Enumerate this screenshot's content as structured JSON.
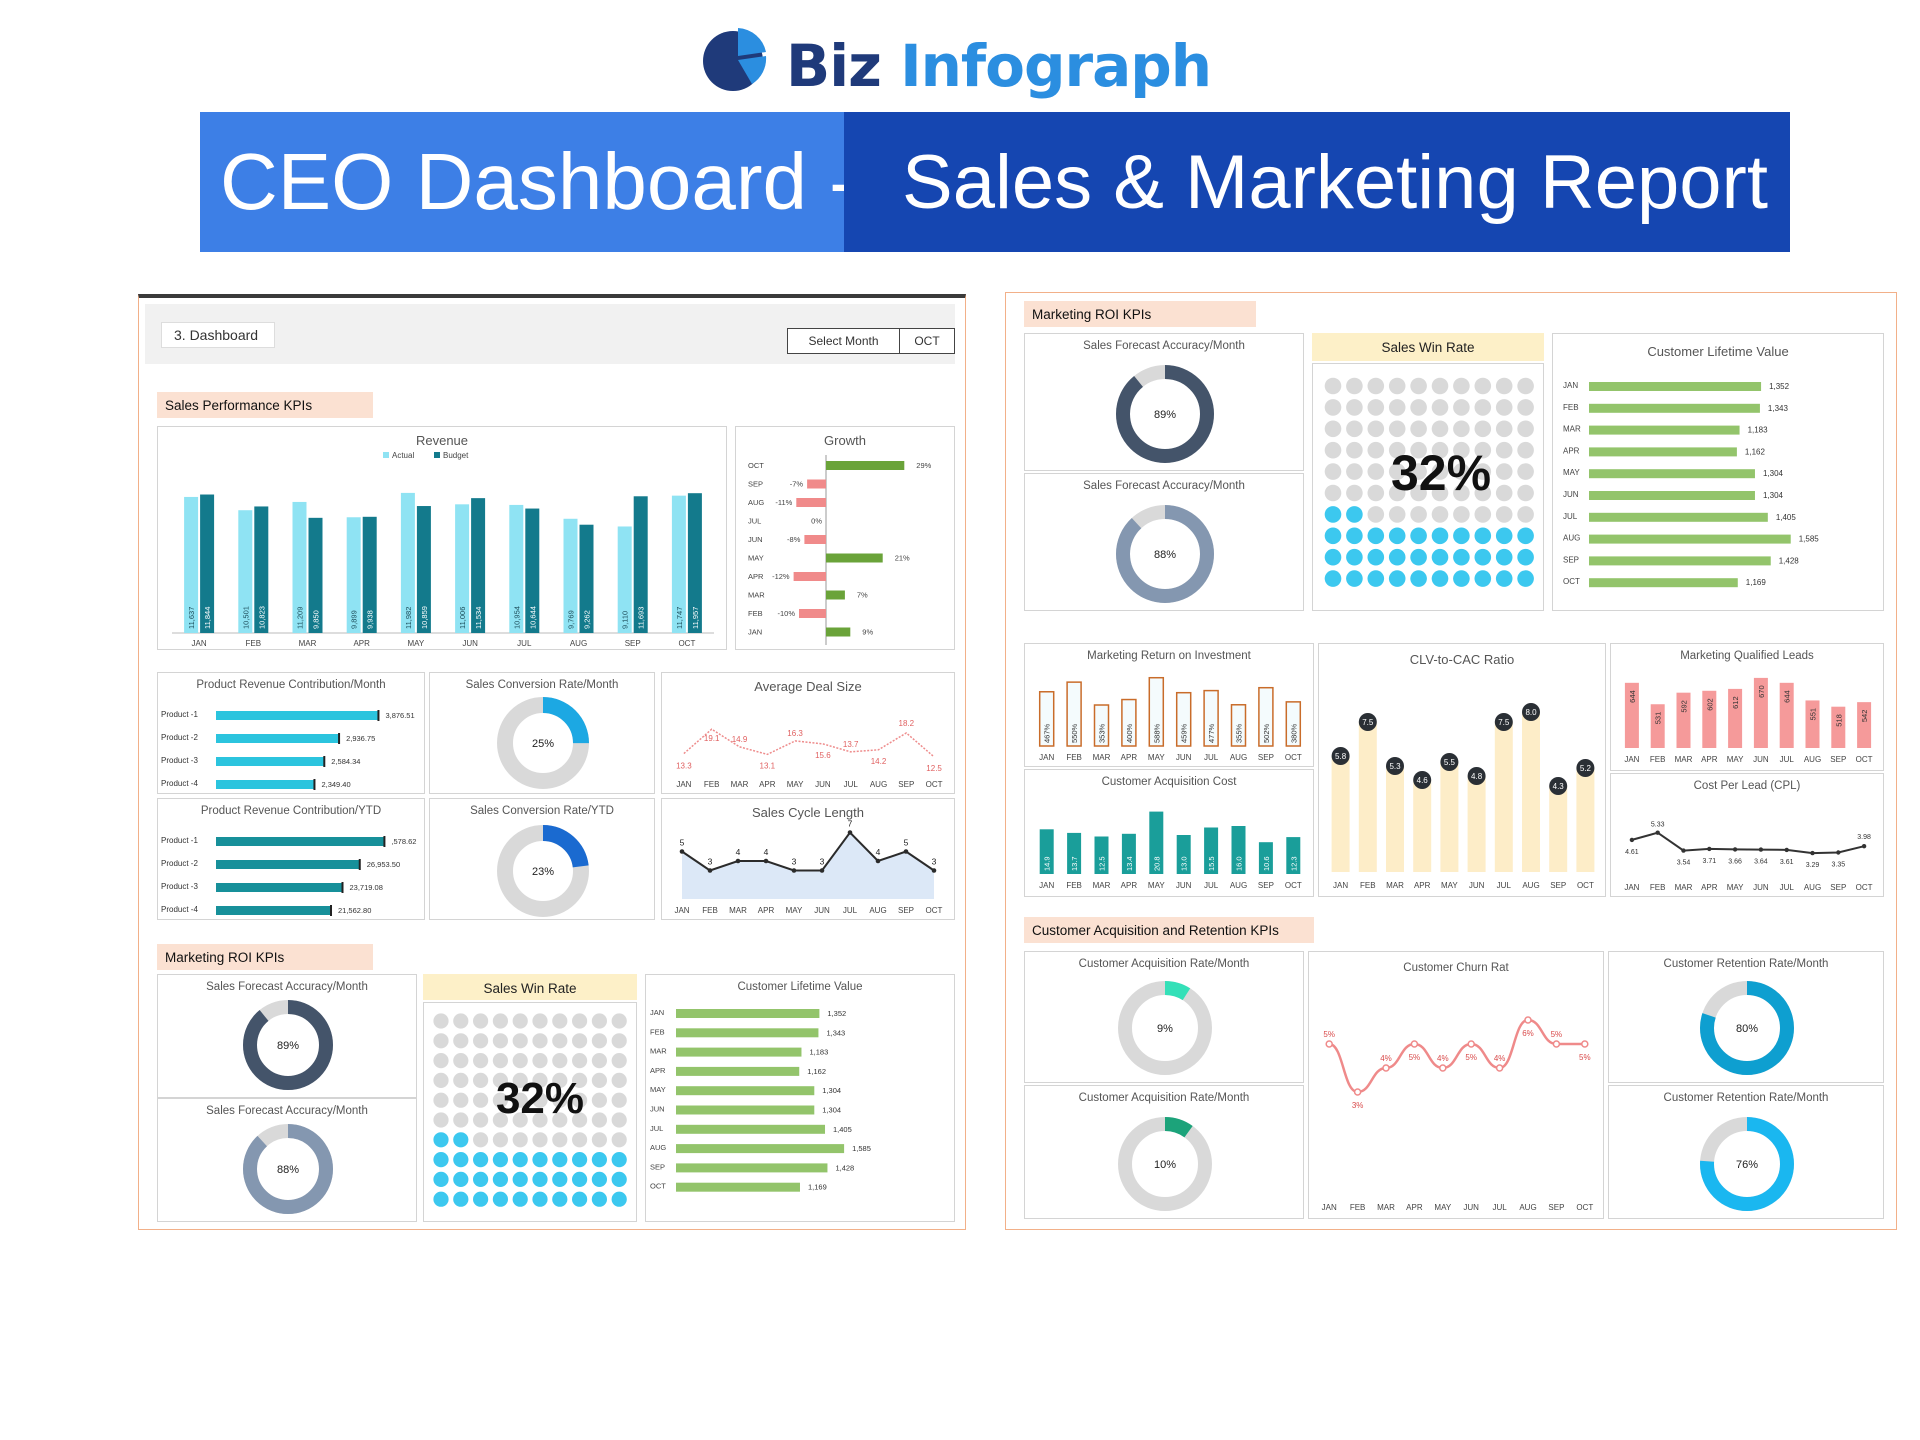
{
  "brand": {
    "name_a": "Biz",
    "name_b": "Infograph"
  },
  "banner": {
    "left": "CEO Dashboard -",
    "right": "Sales & Marketing Report"
  },
  "dash": {
    "tab": "3. Dashboard",
    "select_label": "Select Month",
    "select_value": "OCT"
  },
  "sections": {
    "sales": "Sales Performance KPIs",
    "mroi": "Marketing ROI KPIs",
    "car": "Customer Acquisition and Retention KPIs"
  },
  "months": [
    "JAN",
    "FEB",
    "MAR",
    "APR",
    "MAY",
    "JUN",
    "JUL",
    "AUG",
    "SEP",
    "OCT"
  ],
  "colors": {
    "actual": "#8fe3f3",
    "budget": "#137a8c",
    "win_fill": "#3cc8ef",
    "win_empty": "#d9d9d9",
    "navy": "#44546a",
    "slate": "#8497b0",
    "growth_pos": "#6aa339",
    "growth_neg": "#f08a8a",
    "clv": "#93c46b",
    "teal": "#1a9e9a",
    "cream": "#fdedc8",
    "pink": "#f59a9a",
    "orange": "#c96c2a"
  },
  "revenue": {
    "title": "Revenue",
    "legend": [
      "Actual",
      "Budget"
    ],
    "actual": [
      11637,
      10501,
      11209,
      9899,
      11982,
      11006,
      10954,
      9769,
      9110,
      11747
    ],
    "budget": [
      11844,
      10823,
      9850,
      9938,
      10859,
      11534,
      10644,
      9262,
      11693,
      11957
    ],
    "actual_labels": [
      "11,637",
      "10,501",
      "11,209",
      "9,899",
      "11,982",
      "11,006",
      "10,954",
      "9,769",
      "9,110",
      "11,747"
    ],
    "budget_labels": [
      "11,844",
      "10,823",
      "9,850",
      "9,938",
      "10,859",
      "11,534",
      "10,644",
      "9,262",
      "11,693",
      "11,957"
    ]
  },
  "growth": {
    "title": "Growth",
    "months": [
      "OCT",
      "SEP",
      "AUG",
      "JUL",
      "JUN",
      "MAY",
      "APR",
      "MAR",
      "FEB",
      "JAN"
    ],
    "values": [
      29,
      -7,
      -11,
      0,
      -8,
      21,
      -12,
      7,
      -10,
      9
    ],
    "labels": [
      "29%",
      "-7%",
      "-11%",
      "0%",
      "-8%",
      "21%",
      "-12%",
      "7%",
      "-10%",
      "9%"
    ]
  },
  "prc_month": {
    "title": "Product Revenue Contribution/Month",
    "products": [
      "Product -1",
      "Product -2",
      "Product -3",
      "Product -4"
    ],
    "values": [
      3876.51,
      2936.75,
      2584.34,
      2349.4
    ],
    "labels": [
      "3,876.51",
      "2,936.75",
      "2,584.34",
      "2,349.40"
    ]
  },
  "prc_ytd": {
    "title": "Product Revenue Contribution/YTD",
    "products": [
      "Product -1",
      "Product -2",
      "Product -3",
      "Product -4"
    ],
    "values": [
      31578.62,
      26953.5,
      23719.08,
      21562.8
    ],
    "labels": [
      ",578.62",
      "26,953.50",
      "23,719.08",
      "21,562.80"
    ]
  },
  "scr_month": {
    "title": "Sales Conversion Rate/Month",
    "value": 25,
    "label": "25%"
  },
  "scr_ytd": {
    "title": "Sales Conversion Rate/YTD",
    "value": 23,
    "label": "23%"
  },
  "deal": {
    "title": "Average Deal Size",
    "values": [
      13.3,
      19.1,
      14.9,
      13.1,
      16.3,
      15.6,
      13.7,
      14.2,
      18.2,
      12.5
    ],
    "labels": [
      "13.3",
      "19.1",
      "14.9",
      "13.1",
      "16.3",
      "15.6",
      "13.7",
      "14.2",
      "18.2",
      "12.5"
    ]
  },
  "cycle": {
    "title": "Sales Cycle Length",
    "values": [
      5,
      3,
      4,
      4,
      3,
      3,
      7,
      4,
      5,
      3
    ],
    "labels": [
      "5",
      "3",
      "4",
      "4",
      "3",
      "3",
      "7",
      "4",
      "5",
      "3"
    ]
  },
  "sfa_month": {
    "title": "Sales Forecast Accuracy/Month",
    "value": 89,
    "label": "89%"
  },
  "sfa_month2": {
    "title": "Sales Forecast Accuracy/Month",
    "value": 88,
    "label": "88%"
  },
  "win": {
    "title": "Sales Win Rate",
    "value": 32,
    "label": "32%"
  },
  "clv": {
    "title": "Customer Lifetime Value",
    "values": [
      1352,
      1343,
      1183,
      1162,
      1304,
      1304,
      1405,
      1585,
      1428,
      1169
    ],
    "labels": [
      "1,352",
      "1,343",
      "1,183",
      "1,162",
      "1,304",
      "1,304",
      "1,405",
      "1,585",
      "1,428",
      "1,169"
    ]
  },
  "mroi": {
    "title": "Marketing Return on Investment",
    "values": [
      467,
      550,
      353,
      400,
      588,
      459,
      477,
      355,
      502,
      380
    ],
    "labels": [
      "467%",
      "550%",
      "353%",
      "400%",
      "588%",
      "459%",
      "477%",
      "355%",
      "502%",
      "380%"
    ]
  },
  "cac": {
    "title": "Customer Acquisition Cost",
    "values": [
      14.9,
      13.7,
      12.5,
      13.4,
      20.8,
      13.0,
      15.5,
      16.0,
      10.6,
      12.3
    ],
    "labels": [
      "14.9",
      "13.7",
      "12.5",
      "13.4",
      "20.8",
      "13.0",
      "15.5",
      "16.0",
      "10.6",
      "12.3"
    ]
  },
  "clvcac": {
    "title": "CLV-to-CAC Ratio",
    "values": [
      5.8,
      7.5,
      5.3,
      4.6,
      5.5,
      4.8,
      7.5,
      8.0,
      4.3,
      5.2
    ],
    "labels": [
      "5.8",
      "7.5",
      "5.3",
      "4.6",
      "5.5",
      "4.8",
      "7.5",
      "8.0",
      "4.3",
      "5.2"
    ]
  },
  "mql": {
    "title": "Marketing Qualified Leads",
    "values": [
      644,
      531,
      592,
      602,
      612,
      670,
      644,
      551,
      518,
      542
    ],
    "labels": [
      "644",
      "531",
      "592",
      "602",
      "612",
      "670",
      "644",
      "551",
      "518",
      "542"
    ]
  },
  "cpl": {
    "title": "Cost Per Lead (CPL)",
    "values": [
      4.61,
      5.33,
      3.54,
      3.71,
      3.66,
      3.64,
      3.61,
      3.29,
      3.35,
      3.98
    ],
    "labels": [
      "4.61",
      "5.33",
      "3.54",
      "3.71",
      "3.66",
      "3.64",
      "3.61",
      "3.29",
      "3.35",
      "3.98"
    ]
  },
  "car_month": {
    "title": "Customer Acquisition Rate/Month",
    "value": 9,
    "label": "9%"
  },
  "car_month2": {
    "title": "Customer Acquisition Rate/Month",
    "value": 10,
    "label": "10%"
  },
  "churn": {
    "title": "Customer Churn Rat",
    "values": [
      5,
      3,
      4,
      5,
      4,
      5,
      4,
      6,
      5,
      5
    ],
    "labels": [
      "5%",
      "3%",
      "4%",
      "5%",
      "4%",
      "5%",
      "4%",
      "6%",
      "5%",
      "5%"
    ]
  },
  "crr_month": {
    "title": "Customer Retention Rate/Month",
    "value": 80,
    "label": "80%"
  },
  "crr_month2": {
    "title": "Customer Retention Rate/Month",
    "value": 76,
    "label": "76%"
  }
}
